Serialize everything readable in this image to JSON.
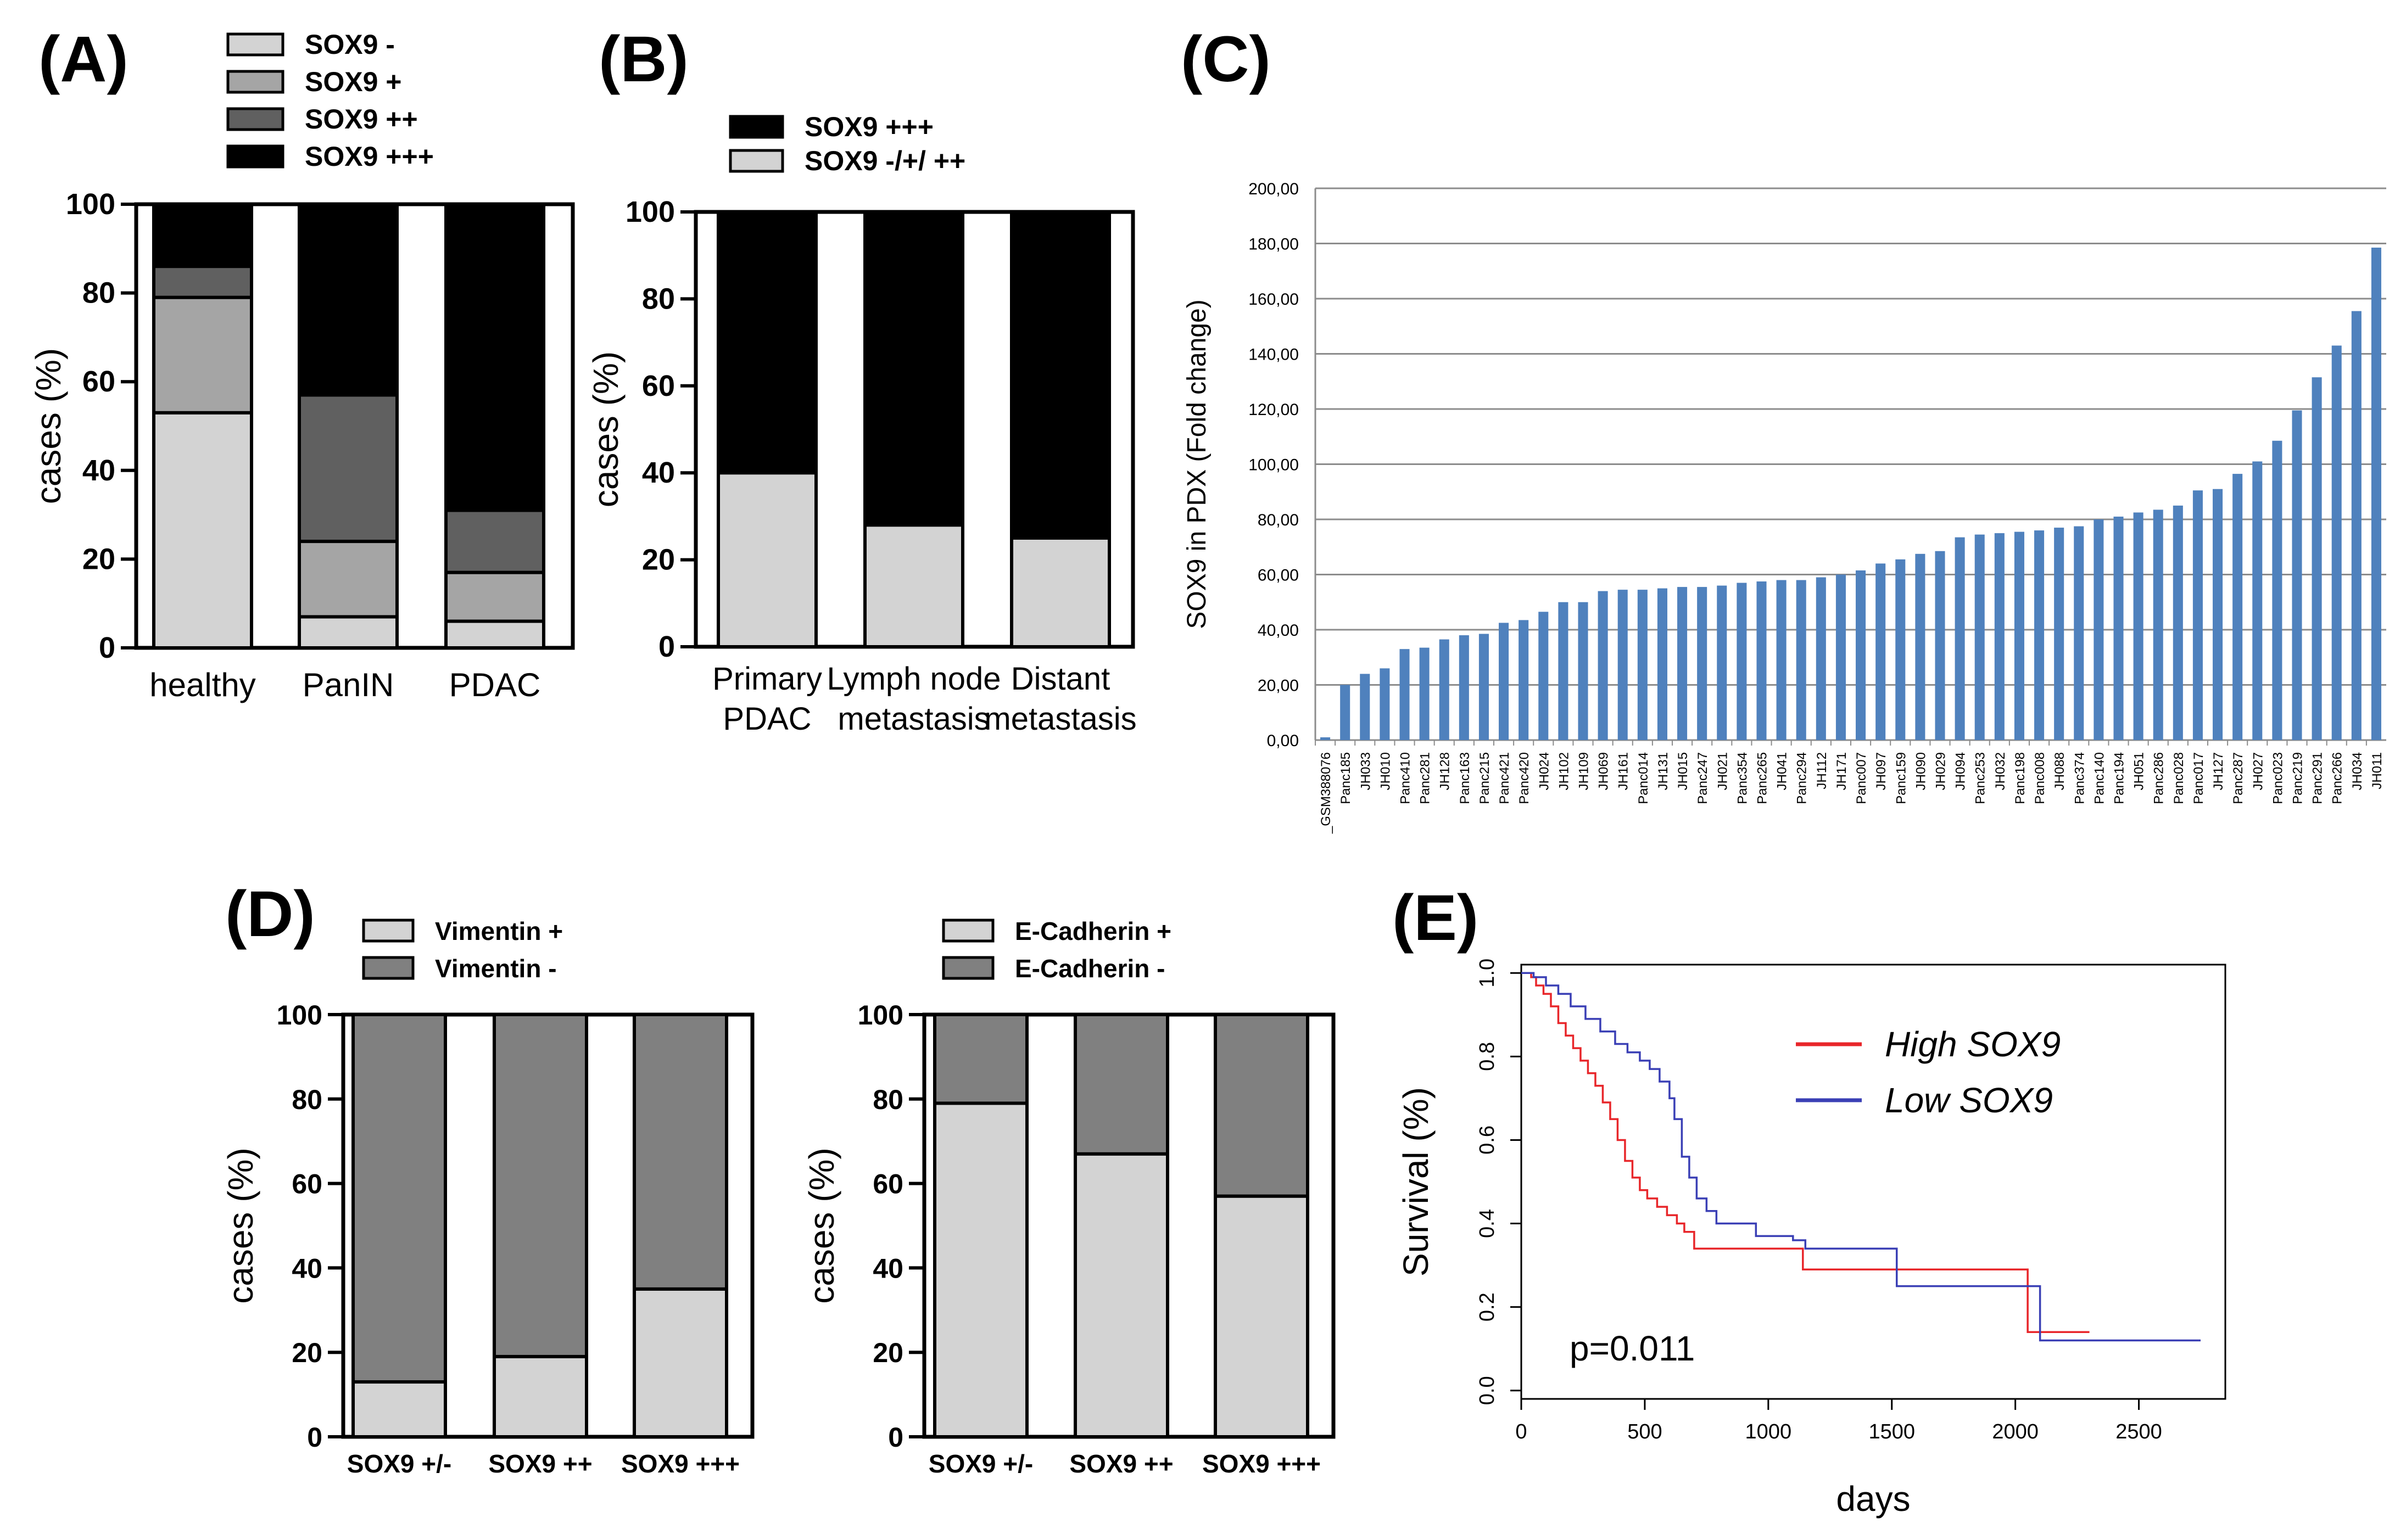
{
  "chart_data": [
    {
      "id": "A",
      "panel_label": "(A)",
      "type": "bar",
      "stacked": true,
      "ylabel": "cases (%)",
      "ylim": [
        0,
        100
      ],
      "yticks": [
        "0",
        "20",
        "40",
        "60",
        "80",
        "100"
      ],
      "categories": [
        "healthy",
        "PanIN",
        "PDAC"
      ],
      "series": [
        {
          "name": "SOX9 -",
          "color": "#d3d3d3",
          "values": [
            53,
            7,
            6
          ]
        },
        {
          "name": "SOX9 +",
          "color": "#a5a5a5",
          "values": [
            26,
            17,
            11
          ]
        },
        {
          "name": "SOX9 ++",
          "color": "#606060",
          "values": [
            7,
            33,
            14
          ]
        },
        {
          "name": "SOX9 +++",
          "color": "#000000",
          "values": [
            14,
            43,
            69
          ]
        }
      ]
    },
    {
      "id": "B",
      "panel_label": "(B)",
      "type": "bar",
      "stacked": true,
      "ylabel": "cases (%)",
      "ylim": [
        0,
        100
      ],
      "yticks": [
        "0",
        "20",
        "40",
        "60",
        "80",
        "100"
      ],
      "categories": [
        [
          "Primary",
          "PDAC"
        ],
        [
          "Lymph node",
          "metastasis"
        ],
        [
          "Distant",
          "metastasis"
        ]
      ],
      "legend_order": [
        1,
        0
      ],
      "series": [
        {
          "name": "SOX9 -/+/ ++",
          "color": "#d3d3d3",
          "values": [
            40,
            28,
            25
          ]
        },
        {
          "name": "SOX9 +++",
          "color": "#000000",
          "values": [
            60,
            72,
            75
          ]
        }
      ]
    },
    {
      "id": "C",
      "panel_label": "(C)",
      "type": "bar",
      "ylabel": "SOX9 in PDX (Fold change)",
      "ylim": [
        0,
        200
      ],
      "yticks": [
        "0,00",
        "20,00",
        "40,00",
        "60,00",
        "80,00",
        "100,00",
        "120,00",
        "140,00",
        "160,00",
        "180,00",
        "200,00"
      ],
      "bar_color": "#4f81bd",
      "categories": [
        "_GSM388076",
        "Panc185",
        "JH033",
        "JH010",
        "Panc410",
        "Panc281",
        "JH128",
        "Panc163",
        "Panc215",
        "Panc421",
        "Panc420",
        "JH024",
        "JH102",
        "JH109",
        "JH069",
        "JH161",
        "Panc014",
        "JH131",
        "JH015",
        "Panc247",
        "JH021",
        "Panc354",
        "Panc265",
        "JH041",
        "Panc294",
        "JH112",
        "JH171",
        "Panc007",
        "JH097",
        "Panc159",
        "JH090",
        "JH029",
        "JH094",
        "Panc253",
        "JH032",
        "Panc198",
        "Panc008",
        "JH088",
        "Panc374",
        "Panc140",
        "Panc194",
        "JH051",
        "Panc286",
        "Panc028",
        "Panc017",
        "JH127",
        "Panc287",
        "JH027",
        "Panc023",
        "Panc219",
        "Panc291",
        "Panc266",
        "JH034",
        "JH011"
      ],
      "values": [
        1,
        20,
        24,
        26,
        33,
        33.5,
        36.5,
        38,
        38.5,
        42.5,
        43.5,
        46.5,
        50,
        50,
        54,
        54.5,
        54.5,
        55,
        55.5,
        55.5,
        56,
        57,
        57.5,
        58,
        58,
        59,
        60,
        61.5,
        64,
        65.5,
        67.5,
        68.5,
        73.5,
        74.5,
        75,
        75.5,
        76,
        77,
        77.5,
        80,
        81,
        82.5,
        83.5,
        85,
        90.5,
        91,
        96.5,
        101,
        108.5,
        119.5,
        131.5,
        143,
        155.5,
        178.5
      ]
    },
    {
      "id": "D1",
      "panel_label": "(D)",
      "type": "bar",
      "stacked": true,
      "ylabel": "cases (%)",
      "ylim": [
        0,
        100
      ],
      "yticks": [
        "0",
        "20",
        "40",
        "60",
        "80",
        "100"
      ],
      "categories": [
        "SOX9 +/-",
        "SOX9 ++",
        "SOX9 +++"
      ],
      "series": [
        {
          "name": "Vimentin +",
          "color": "#d3d3d3",
          "values": [
            13,
            19,
            35
          ]
        },
        {
          "name": "Vimentin -",
          "color": "#808080",
          "values": [
            87,
            81,
            65
          ]
        }
      ]
    },
    {
      "id": "D2",
      "panel_label": "",
      "type": "bar",
      "stacked": true,
      "ylabel": "cases (%)",
      "ylim": [
        0,
        100
      ],
      "yticks": [
        "0",
        "20",
        "40",
        "60",
        "80",
        "100"
      ],
      "categories": [
        "SOX9 +/-",
        "SOX9 ++",
        "SOX9 +++"
      ],
      "series": [
        {
          "name": "E-Cadherin +",
          "color": "#d3d3d3",
          "values": [
            79,
            67,
            57
          ]
        },
        {
          "name": "E-Cadherin -",
          "color": "#808080",
          "values": [
            21,
            33,
            43
          ]
        }
      ]
    },
    {
      "id": "E",
      "panel_label": "(E)",
      "type": "line",
      "subtype": "kaplan-meier",
      "xlabel": "days",
      "ylabel": "Survival (%)",
      "xlim": [
        0,
        2850
      ],
      "ylim": [
        -0.02,
        1.02
      ],
      "xticks": [
        "0",
        "500",
        "1000",
        "1500",
        "2000",
        "2500"
      ],
      "yticks": [
        "0.0",
        "0.2",
        "0.4",
        "0.6",
        "0.8",
        "1.0"
      ],
      "annotation": "p=0.011",
      "series": [
        {
          "name": "High SOX9",
          "color": "#e8262a",
          "points": [
            [
              0,
              1.0
            ],
            [
              40,
              0.99
            ],
            [
              60,
              0.97
            ],
            [
              90,
              0.95
            ],
            [
              120,
              0.92
            ],
            [
              150,
              0.88
            ],
            [
              180,
              0.85
            ],
            [
              210,
              0.82
            ],
            [
              240,
              0.79
            ],
            [
              270,
              0.76
            ],
            [
              300,
              0.73
            ],
            [
              330,
              0.69
            ],
            [
              360,
              0.65
            ],
            [
              390,
              0.6
            ],
            [
              420,
              0.55
            ],
            [
              450,
              0.51
            ],
            [
              480,
              0.48
            ],
            [
              510,
              0.46
            ],
            [
              550,
              0.44
            ],
            [
              590,
              0.42
            ],
            [
              630,
              0.4
            ],
            [
              660,
              0.38
            ],
            [
              700,
              0.34
            ],
            [
              750,
              0.34
            ],
            [
              1100,
              0.34
            ],
            [
              1140,
              0.29
            ],
            [
              2020,
              0.29
            ],
            [
              2050,
              0.14
            ],
            [
              2300,
              0.14
            ]
          ]
        },
        {
          "name": "Low SOX9",
          "color": "#3a3fb5",
          "points": [
            [
              0,
              1.0
            ],
            [
              50,
              0.99
            ],
            [
              100,
              0.97
            ],
            [
              150,
              0.95
            ],
            [
              200,
              0.92
            ],
            [
              260,
              0.89
            ],
            [
              320,
              0.86
            ],
            [
              380,
              0.83
            ],
            [
              430,
              0.81
            ],
            [
              480,
              0.79
            ],
            [
              520,
              0.77
            ],
            [
              560,
              0.74
            ],
            [
              600,
              0.7
            ],
            [
              620,
              0.65
            ],
            [
              650,
              0.56
            ],
            [
              680,
              0.51
            ],
            [
              710,
              0.46
            ],
            [
              750,
              0.43
            ],
            [
              790,
              0.4
            ],
            [
              900,
              0.4
            ],
            [
              950,
              0.37
            ],
            [
              1100,
              0.36
            ],
            [
              1150,
              0.34
            ],
            [
              1500,
              0.34
            ],
            [
              1520,
              0.25
            ],
            [
              2080,
              0.25
            ],
            [
              2100,
              0.12
            ],
            [
              2750,
              0.12
            ]
          ]
        }
      ]
    }
  ]
}
